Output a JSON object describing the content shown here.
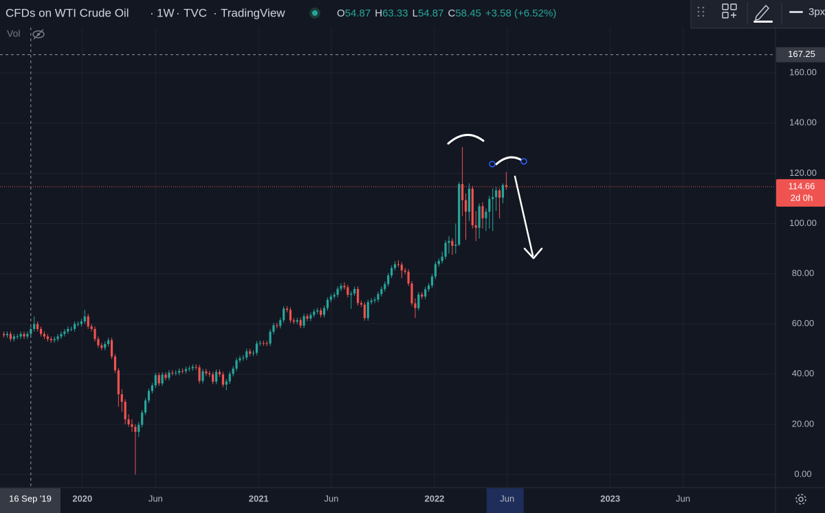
{
  "chart_data": {
    "type": "candlestick",
    "title": "CFDs on WTI Crude Oil",
    "interval": "1W",
    "exchange": "TVC",
    "publisher": "TradingView",
    "ohlc_legend": [
      {
        "key": "O",
        "value": 54.87
      },
      {
        "key": "H",
        "value": 63.33
      },
      {
        "key": "L",
        "value": 54.87
      },
      {
        "key": "C",
        "value": 58.45
      }
    ],
    "change": "+3.58 (+6.52%)",
    "volume_label": "Vol",
    "toolbar_width": "3px",
    "up_color": "#26a69a",
    "down_color": "#ef5350",
    "grid": true,
    "xlim": [
      "2019-07-14",
      "2023-12-10"
    ],
    "xticks": [
      {
        "value": "2020-01-01",
        "label": "2020"
      },
      {
        "value": "2020-06-01",
        "label": "Jun"
      },
      {
        "value": "2021-01-01",
        "label": "2021"
      },
      {
        "value": "2021-06-01",
        "label": "Jun"
      },
      {
        "value": "2022-01-01",
        "label": "2022"
      },
      {
        "value": "2022-06-01",
        "label": "Jun"
      },
      {
        "value": "2023-01-01",
        "label": "2023"
      },
      {
        "value": "2023-06-01",
        "label": "Jun"
      }
    ],
    "ylim": [
      -5.2,
      178.1
    ],
    "yticks": [
      {
        "value": 0,
        "label": "0.00"
      },
      {
        "value": 20,
        "label": "20.00"
      },
      {
        "value": 40,
        "label": "40.00"
      },
      {
        "value": 60,
        "label": "60.00"
      },
      {
        "value": 80,
        "label": "80.00"
      },
      {
        "value": 100,
        "label": "100.00"
      },
      {
        "value": 120,
        "label": "120.00"
      },
      {
        "value": 140,
        "label": "140.00"
      },
      {
        "value": 160,
        "label": "160.00"
      }
    ],
    "crosshair": {
      "date": {
        "value": "2019-09-16",
        "label": "16 Sep '19"
      },
      "price": 167.25
    },
    "last_price": 114.66,
    "countdown": "2d 0h",
    "open": [
      56,
      55.5,
      56,
      54,
      55,
      55,
      56,
      55,
      56,
      58,
      60,
      58,
      56,
      55,
      54,
      53.5,
      54,
      55,
      56,
      57,
      58,
      58,
      60,
      60,
      61,
      63,
      59,
      58,
      54,
      51.5,
      50.5,
      52,
      53.5,
      47,
      41.5,
      32,
      29,
      22,
      20,
      19,
      17,
      19.8,
      24.7,
      29.5,
      33.3,
      35.5,
      39.6,
      36.3,
      39.8,
      38.5,
      40.6,
      40.5,
      40.6,
      41.3,
      41.2,
      42,
      42.3,
      42.9,
      42.7,
      37.3,
      41.1,
      40.3,
      39.9,
      37,
      40.9,
      39.9,
      35.8,
      37.1,
      40.1,
      42.2,
      45.5,
      46.3,
      46.6,
      49.1,
      48.2,
      48.5,
      52.2,
      52.4,
      52.3,
      52.2,
      56.9,
      59.5,
      59.2,
      61.5,
      66.1,
      65.6,
      61.4,
      60.9,
      61.5,
      59.3,
      63.1,
      62.1,
      63.6,
      64.9,
      65.4,
      63.6,
      66.3,
      69.6,
      70.9,
      71.6,
      74,
      75.2,
      74.6,
      71.6,
      72.1,
      73.9,
      68.3,
      67.7,
      62.3,
      68.7,
      69.3,
      69.7,
      71.9,
      73.9,
      75.9,
      79.3,
      82.3,
      83.8,
      83.6,
      81.3,
      80.8,
      76.1,
      68.2,
      66.3,
      71.7,
      70.9,
      73.8,
      75.3,
      78.9,
      83.8,
      85.1,
      86.8,
      92.3,
      93.1,
      91.1,
      91.6,
      115.7,
      109.3,
      104.7,
      113.9,
      99.3,
      98.3,
      106.9,
      102.1,
      104.7,
      109.8,
      110.5,
      113.2,
      110.3,
      115.3
    ],
    "high": [
      57,
      57,
      57,
      56,
      56,
      57,
      57,
      57,
      59,
      63,
      61,
      59,
      57,
      56,
      55,
      55,
      56,
      57,
      58,
      59,
      59,
      61,
      61,
      62,
      65.6,
      64,
      60,
      59,
      55,
      52.5,
      53,
      54.5,
      54.5,
      48,
      42.5,
      34,
      30,
      24,
      22,
      20,
      21,
      25.7,
      30.5,
      34.3,
      36.5,
      40.6,
      40.6,
      40.8,
      40.8,
      41.6,
      41.6,
      41.6,
      42.3,
      42.3,
      43,
      43.3,
      43.9,
      43.9,
      43.7,
      42.1,
      42.1,
      41.3,
      40.9,
      41.9,
      41.9,
      40.9,
      38.1,
      41.1,
      43.2,
      46.5,
      47.3,
      47.6,
      50.1,
      50.1,
      49.5,
      53.2,
      53.4,
      53.4,
      53.3,
      57.9,
      60.5,
      60.5,
      62.5,
      67.1,
      67.1,
      66.6,
      62.4,
      62.5,
      62.5,
      64.1,
      64.1,
      64.6,
      65.9,
      66.4,
      66.4,
      67.3,
      70.6,
      71.9,
      72.6,
      75,
      76.2,
      76.6,
      75.6,
      73.1,
      74.9,
      74.9,
      69.3,
      68.7,
      69.7,
      70.3,
      70.7,
      72.9,
      74.9,
      76.9,
      80.3,
      83.3,
      85,
      85.4,
      84.6,
      82.3,
      81.8,
      77.1,
      70.2,
      72.7,
      72.7,
      74.8,
      76.3,
      79.9,
      84.8,
      86.1,
      88.8,
      93.3,
      95,
      94.1,
      100,
      116.5,
      130.5,
      112,
      116,
      115,
      105,
      108,
      108.5,
      106,
      111,
      114,
      114.5,
      114,
      116,
      120.5
    ],
    "low": [
      54.5,
      54.5,
      53,
      53,
      54,
      54,
      54,
      54,
      55,
      57,
      57,
      55,
      54,
      53,
      52.5,
      52.5,
      53,
      54,
      55,
      56,
      57,
      57,
      59,
      59,
      60,
      58,
      57,
      53,
      50.5,
      49.5,
      49.5,
      51,
      46,
      40.5,
      27,
      25,
      20,
      19,
      17,
      0,
      15,
      18.8,
      23.7,
      28.5,
      32.3,
      34.5,
      35.3,
      35.3,
      37.5,
      37.5,
      39.5,
      39.5,
      39.6,
      40.2,
      40.2,
      41,
      41.3,
      41.7,
      36.3,
      36.3,
      39.3,
      38.9,
      36,
      36,
      38.9,
      34.8,
      33.6,
      36.1,
      39.1,
      41.2,
      44.5,
      45.3,
      45.6,
      47.2,
      47.2,
      47.5,
      51.2,
      51.3,
      51.2,
      51.2,
      55.9,
      58.2,
      58.2,
      60.5,
      64.6,
      60.4,
      59.9,
      59.9,
      58.3,
      58.3,
      61.1,
      61.1,
      62.6,
      63.9,
      62.6,
      62.6,
      65.3,
      68.6,
      69.9,
      70.6,
      73,
      73.6,
      70.6,
      66,
      71.1,
      67.3,
      66.7,
      61.3,
      61.3,
      67.7,
      68.3,
      68.7,
      70.9,
      72.9,
      74.9,
      78.3,
      81.3,
      82.6,
      78.3,
      79.8,
      75.1,
      67.2,
      62.4,
      65.3,
      69.9,
      69.9,
      72.8,
      74.3,
      77.9,
      82.8,
      84.1,
      85.8,
      88,
      87.5,
      88,
      91,
      103,
      93.5,
      101,
      98,
      93,
      94,
      98,
      97,
      98,
      97,
      105,
      102,
      108,
      113.5
    ],
    "close": [
      55.5,
      56,
      54,
      55,
      55,
      56,
      55,
      56,
      58,
      60,
      58,
      56,
      55,
      54,
      53.5,
      54,
      55,
      56,
      57,
      58,
      58,
      60,
      60,
      61,
      63,
      59,
      58,
      54,
      51.5,
      50.5,
      52,
      53.5,
      47,
      41.5,
      32,
      29,
      22,
      20,
      19,
      17,
      19.8,
      24.7,
      29.5,
      33.3,
      35.5,
      39.6,
      36.3,
      39.8,
      38.5,
      40.6,
      40.5,
      40.6,
      41.3,
      41.2,
      42,
      42.3,
      42.9,
      42.7,
      37.3,
      41.1,
      40.3,
      39.9,
      37,
      40.9,
      39.9,
      35.8,
      37.1,
      40.1,
      42.2,
      45.5,
      46.3,
      46.6,
      49.1,
      48.2,
      48.5,
      52.2,
      52.4,
      52.3,
      52.2,
      56.9,
      59.5,
      59.2,
      61.5,
      66.1,
      65.6,
      61.4,
      60.9,
      61.5,
      59.3,
      63.1,
      62.1,
      63.6,
      64.9,
      65.4,
      63.6,
      66.3,
      69.6,
      70.9,
      71.6,
      74,
      75.2,
      74.6,
      71.6,
      72.1,
      73.9,
      68.3,
      67.7,
      62.3,
      68.7,
      69.3,
      69.7,
      71.9,
      73.9,
      75.9,
      79.3,
      82.3,
      83.8,
      83.6,
      81.3,
      80.8,
      76.1,
      68.2,
      66.3,
      71.7,
      70.9,
      73.8,
      75.3,
      78.9,
      83.8,
      85.1,
      86.8,
      92.3,
      93.1,
      91.1,
      91.6,
      115.7,
      109.3,
      104.7,
      113.9,
      99.3,
      98.3,
      106.9,
      102.1,
      104.7,
      109.8,
      110.5,
      113.2,
      110.3,
      115.3,
      114.66
    ]
  }
}
